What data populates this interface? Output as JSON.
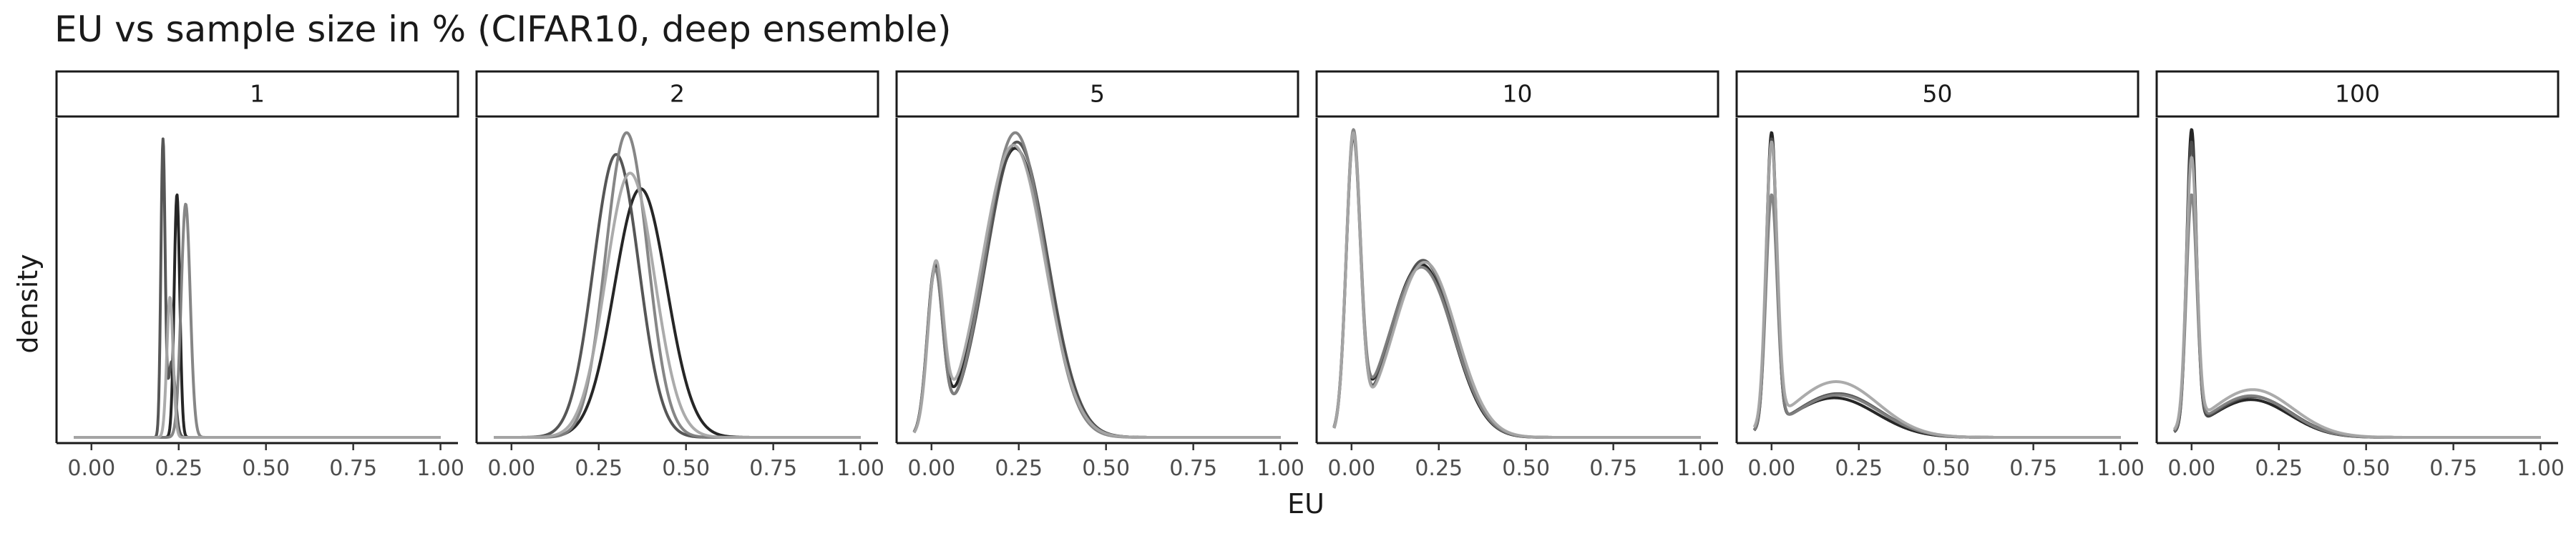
{
  "chart_data": {
    "type": "line",
    "title": "EU vs sample size in %  (CIFAR10, deep ensemble)",
    "xlabel": "EU",
    "ylabel": "density",
    "xlim": [
      -0.1,
      1.05
    ],
    "x_ticks": [
      "0.00",
      "0.25",
      "0.50",
      "0.75",
      "1.00"
    ],
    "x_tick_values": [
      0,
      0.25,
      0.5,
      0.75,
      1.0
    ],
    "grid": false,
    "legend": "none",
    "series_colors": [
      "#1a1a1a",
      "#4d4d4d",
      "#808080",
      "#a6a6a6"
    ],
    "facets": [
      {
        "label": "1",
        "ymax": 1.0,
        "series": [
          {
            "components": [
              {
                "w": 1.0,
                "mu": 0.245,
                "sd": 0.008
              }
            ]
          },
          {
            "components": [
              {
                "w": 0.7,
                "mu": 0.205,
                "sd": 0.006
              },
              {
                "w": 0.3,
                "mu": 0.23,
                "sd": 0.01
              }
            ]
          },
          {
            "components": [
              {
                "w": 1.0,
                "mu": 0.27,
                "sd": 0.013
              }
            ]
          },
          {
            "components": [
              {
                "w": 1.0,
                "mu": 0.225,
                "sd": 0.009
              }
            ]
          }
        ],
        "peaks": [
          0.78,
          0.96,
          0.75,
          0.45
        ]
      },
      {
        "label": "2",
        "ymax": 1.0,
        "series": [
          {
            "components": [
              {
                "w": 1.0,
                "mu": 0.37,
                "sd": 0.075
              }
            ]
          },
          {
            "components": [
              {
                "w": 1.0,
                "mu": 0.3,
                "sd": 0.065
              }
            ]
          },
          {
            "components": [
              {
                "w": 1.0,
                "mu": 0.33,
                "sd": 0.06
              }
            ]
          },
          {
            "components": [
              {
                "w": 1.0,
                "mu": 0.34,
                "sd": 0.07
              }
            ]
          }
        ],
        "peaks": [
          0.8,
          0.91,
          0.98,
          0.85
        ]
      },
      {
        "label": "5",
        "ymax": 1.0,
        "series": [
          {
            "components": [
              {
                "w": 0.12,
                "mu": 0.01,
                "sd": 0.022
              },
              {
                "w": 0.88,
                "mu": 0.24,
                "sd": 0.09
              }
            ]
          },
          {
            "components": [
              {
                "w": 0.12,
                "mu": 0.01,
                "sd": 0.022
              },
              {
                "w": 0.88,
                "mu": 0.245,
                "sd": 0.088
              }
            ]
          },
          {
            "components": [
              {
                "w": 0.12,
                "mu": 0.01,
                "sd": 0.022
              },
              {
                "w": 0.88,
                "mu": 0.24,
                "sd": 0.085
              }
            ]
          },
          {
            "components": [
              {
                "w": 0.12,
                "mu": 0.012,
                "sd": 0.022
              },
              {
                "w": 0.88,
                "mu": 0.235,
                "sd": 0.09
              }
            ]
          }
        ],
        "peaks": [
          0.93,
          0.95,
          0.98,
          0.94
        ]
      },
      {
        "label": "10",
        "ymax": 1.0,
        "series": [
          {
            "components": [
              {
                "w": 0.27,
                "mu": 0.005,
                "sd": 0.02
              },
              {
                "w": 0.73,
                "mu": 0.2,
                "sd": 0.09
              }
            ]
          },
          {
            "components": [
              {
                "w": 0.27,
                "mu": 0.005,
                "sd": 0.02
              },
              {
                "w": 0.73,
                "mu": 0.205,
                "sd": 0.088
              }
            ]
          },
          {
            "components": [
              {
                "w": 0.27,
                "mu": 0.005,
                "sd": 0.02
              },
              {
                "w": 0.73,
                "mu": 0.2,
                "sd": 0.092
              }
            ]
          },
          {
            "components": [
              {
                "w": 0.27,
                "mu": 0.005,
                "sd": 0.02
              },
              {
                "w": 0.73,
                "mu": 0.21,
                "sd": 0.09
              }
            ]
          }
        ],
        "peaks": [
          0.98,
          0.97,
          0.99,
          0.98
        ]
      },
      {
        "label": "50",
        "ymax": 1.0,
        "series": [
          {
            "components": [
              {
                "w": 0.48,
                "mu": 0.0,
                "sd": 0.015
              },
              {
                "w": 0.52,
                "mu": 0.18,
                "sd": 0.12
              }
            ]
          },
          {
            "components": [
              {
                "w": 0.45,
                "mu": 0.0,
                "sd": 0.015
              },
              {
                "w": 0.55,
                "mu": 0.19,
                "sd": 0.12
              }
            ]
          },
          {
            "components": [
              {
                "w": 0.42,
                "mu": 0.0,
                "sd": 0.016
              },
              {
                "w": 0.58,
                "mu": 0.19,
                "sd": 0.12
              }
            ]
          },
          {
            "components": [
              {
                "w": 0.4,
                "mu": 0.0,
                "sd": 0.016
              },
              {
                "w": 0.6,
                "mu": 0.185,
                "sd": 0.12
              }
            ]
          }
        ],
        "peaks": [
          0.98,
          0.96,
          0.78,
          0.95
        ]
      },
      {
        "label": "100",
        "ymax": 1.0,
        "series": [
          {
            "components": [
              {
                "w": 0.5,
                "mu": 0.0,
                "sd": 0.014
              },
              {
                "w": 0.5,
                "mu": 0.17,
                "sd": 0.11
              }
            ]
          },
          {
            "components": [
              {
                "w": 0.47,
                "mu": 0.0,
                "sd": 0.014
              },
              {
                "w": 0.53,
                "mu": 0.175,
                "sd": 0.11
              }
            ]
          },
          {
            "components": [
              {
                "w": 0.43,
                "mu": 0.0,
                "sd": 0.015
              },
              {
                "w": 0.57,
                "mu": 0.17,
                "sd": 0.11
              }
            ]
          },
          {
            "components": [
              {
                "w": 0.42,
                "mu": 0.0,
                "sd": 0.015
              },
              {
                "w": 0.58,
                "mu": 0.175,
                "sd": 0.115
              }
            ]
          }
        ],
        "peaks": [
          0.99,
          0.95,
          0.78,
          0.9
        ]
      }
    ]
  }
}
